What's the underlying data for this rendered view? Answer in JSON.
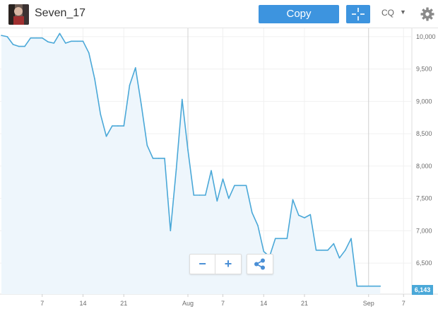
{
  "header": {
    "username": "Seven_17",
    "copy_label": "Copy",
    "chart_menu_label": "CQ"
  },
  "colors": {
    "accent": "#3d94df",
    "line": "#4aa8d8",
    "fill": "#eef6fc"
  },
  "icons": [
    "crosshair-icon",
    "chevron-down-icon",
    "gear-icon",
    "minus-icon",
    "plus-icon",
    "share-icon"
  ],
  "controls": {
    "zoom_out_label": "−",
    "zoom_in_label": "+"
  },
  "chart_data": {
    "type": "area",
    "x_tick_labels": [
      "7",
      "14",
      "21",
      "Aug",
      "7",
      "14",
      "21",
      "Sep",
      "7"
    ],
    "y_tick_labels": [
      "6,500",
      "7,000",
      "7,500",
      "8,000",
      "8,500",
      "9,000",
      "9,500",
      "10,000"
    ],
    "y_ticks": [
      6500,
      7000,
      7500,
      8000,
      8500,
      9000,
      9500,
      10000
    ],
    "ylim": [
      6020,
      10130
    ],
    "grid": true,
    "last_value_label": "6,143",
    "points": [
      [
        "Jun 30",
        10020
      ],
      [
        "Jul 1",
        10000
      ],
      [
        "Jul 2",
        9880
      ],
      [
        "Jul 3",
        9850
      ],
      [
        "Jul 4",
        9850
      ],
      [
        "Jul 5",
        9980
      ],
      [
        "Jul 6",
        9980
      ],
      [
        "Jul 7",
        9980
      ],
      [
        "Jul 8",
        9920
      ],
      [
        "Jul 9",
        9900
      ],
      [
        "Jul 10",
        10050
      ],
      [
        "Jul 11",
        9900
      ],
      [
        "Jul 12",
        9930
      ],
      [
        "Jul 13",
        9930
      ],
      [
        "Jul 14",
        9930
      ],
      [
        "Jul 15",
        9750
      ],
      [
        "Jul 16",
        9350
      ],
      [
        "Jul 17",
        8800
      ],
      [
        "Jul 18",
        8460
      ],
      [
        "Jul 19",
        8620
      ],
      [
        "Jul 20",
        8620
      ],
      [
        "Jul 21",
        8620
      ],
      [
        "Jul 22",
        9250
      ],
      [
        "Jul 23",
        9520
      ],
      [
        "Jul 24",
        8950
      ],
      [
        "Jul 25",
        8320
      ],
      [
        "Jul 26",
        8120
      ],
      [
        "Jul 27",
        8120
      ],
      [
        "Jul 28",
        8120
      ],
      [
        "Jul 29",
        7000
      ],
      [
        "Jul 30",
        7950
      ],
      [
        "Jul 31",
        9030
      ],
      [
        "Aug 1",
        8250
      ],
      [
        "Aug 2",
        7550
      ],
      [
        "Aug 3",
        7550
      ],
      [
        "Aug 4",
        7550
      ],
      [
        "Aug 5",
        7930
      ],
      [
        "Aug 6",
        7460
      ],
      [
        "Aug 7",
        7800
      ],
      [
        "Aug 8",
        7500
      ],
      [
        "Aug 9",
        7700
      ],
      [
        "Aug 10",
        7700
      ],
      [
        "Aug 11",
        7700
      ],
      [
        "Aug 12",
        7280
      ],
      [
        "Aug 13",
        7080
      ],
      [
        "Aug 14",
        6680
      ],
      [
        "Aug 15",
        6600
      ],
      [
        "Aug 16",
        6880
      ],
      [
        "Aug 17",
        6880
      ],
      [
        "Aug 18",
        6880
      ],
      [
        "Aug 19",
        7480
      ],
      [
        "Aug 20",
        7240
      ],
      [
        "Aug 21",
        7200
      ],
      [
        "Aug 22",
        7250
      ],
      [
        "Aug 23",
        6700
      ],
      [
        "Aug 24",
        6700
      ],
      [
        "Aug 25",
        6700
      ],
      [
        "Aug 26",
        6800
      ],
      [
        "Aug 27",
        6580
      ],
      [
        "Aug 28",
        6700
      ],
      [
        "Aug 29",
        6880
      ],
      [
        "Aug 30",
        6143
      ],
      [
        "Aug 31",
        6143
      ],
      [
        "Sep 1",
        6143
      ],
      [
        "Sep 2",
        6143
      ],
      [
        "Sep 3",
        6143
      ]
    ]
  }
}
